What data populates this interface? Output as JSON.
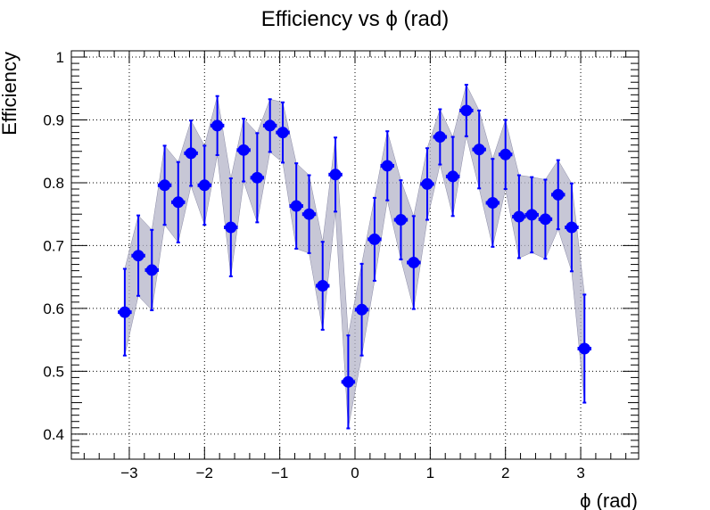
{
  "chart_data": {
    "type": "scatter",
    "title": "Efficiency vs ϕ (rad)",
    "xlabel": "ϕ (rad)",
    "ylabel": "Efficiency",
    "xlim": [
      -3.77,
      3.77
    ],
    "ylim": [
      0.36,
      1.01
    ],
    "grid": true,
    "x_ticks": [
      -3,
      -2,
      -1,
      0,
      1,
      2,
      3
    ],
    "x_tick_labels": [
      "−3",
      "−2",
      "−1",
      "0",
      "1",
      "2",
      "3"
    ],
    "y_ticks": [
      0.4,
      0.5,
      0.6,
      0.7,
      0.8,
      0.9,
      1.0
    ],
    "y_tick_labels": [
      "0.4",
      "0.5",
      "0.6",
      "0.7",
      "0.8",
      "0.9",
      "1"
    ],
    "marker_color": "#0000ff",
    "band_color": "#b4b4c8",
    "x_error": 0.08,
    "points": [
      {
        "x": -3.06,
        "y": 0.594,
        "err": 0.069
      },
      {
        "x": -2.88,
        "y": 0.684,
        "err": 0.064
      },
      {
        "x": -2.7,
        "y": 0.661,
        "err": 0.064
      },
      {
        "x": -2.53,
        "y": 0.796,
        "err": 0.063
      },
      {
        "x": -2.35,
        "y": 0.769,
        "err": 0.064
      },
      {
        "x": -2.18,
        "y": 0.847,
        "err": 0.052
      },
      {
        "x": -2.0,
        "y": 0.796,
        "err": 0.063
      },
      {
        "x": -1.83,
        "y": 0.891,
        "err": 0.047
      },
      {
        "x": -1.65,
        "y": 0.729,
        "err": 0.078
      },
      {
        "x": -1.48,
        "y": 0.852,
        "err": 0.05
      },
      {
        "x": -1.3,
        "y": 0.808,
        "err": 0.071
      },
      {
        "x": -1.13,
        "y": 0.891,
        "err": 0.042
      },
      {
        "x": -0.96,
        "y": 0.88,
        "err": 0.048
      },
      {
        "x": -0.78,
        "y": 0.763,
        "err": 0.068
      },
      {
        "x": -0.61,
        "y": 0.75,
        "err": 0.062
      },
      {
        "x": -0.43,
        "y": 0.636,
        "err": 0.07
      },
      {
        "x": -0.26,
        "y": 0.813,
        "err": 0.059
      },
      {
        "x": -0.09,
        "y": 0.483,
        "err": 0.074
      },
      {
        "x": 0.09,
        "y": 0.598,
        "err": 0.073
      },
      {
        "x": 0.26,
        "y": 0.71,
        "err": 0.066
      },
      {
        "x": 0.43,
        "y": 0.827,
        "err": 0.055
      },
      {
        "x": 0.61,
        "y": 0.741,
        "err": 0.063
      },
      {
        "x": 0.78,
        "y": 0.673,
        "err": 0.074
      },
      {
        "x": 0.96,
        "y": 0.798,
        "err": 0.057
      },
      {
        "x": 1.13,
        "y": 0.873,
        "err": 0.044
      },
      {
        "x": 1.3,
        "y": 0.81,
        "err": 0.063
      },
      {
        "x": 1.48,
        "y": 0.915,
        "err": 0.041
      },
      {
        "x": 1.65,
        "y": 0.853,
        "err": 0.062
      },
      {
        "x": 1.83,
        "y": 0.768,
        "err": 0.07
      },
      {
        "x": 2.0,
        "y": 0.845,
        "err": 0.055
      },
      {
        "x": 2.18,
        "y": 0.746,
        "err": 0.066
      },
      {
        "x": 2.35,
        "y": 0.749,
        "err": 0.06
      },
      {
        "x": 2.53,
        "y": 0.742,
        "err": 0.063
      },
      {
        "x": 2.7,
        "y": 0.781,
        "err": 0.055
      },
      {
        "x": 2.88,
        "y": 0.729,
        "err": 0.07
      },
      {
        "x": 3.05,
        "y": 0.536,
        "err": 0.086
      }
    ]
  }
}
